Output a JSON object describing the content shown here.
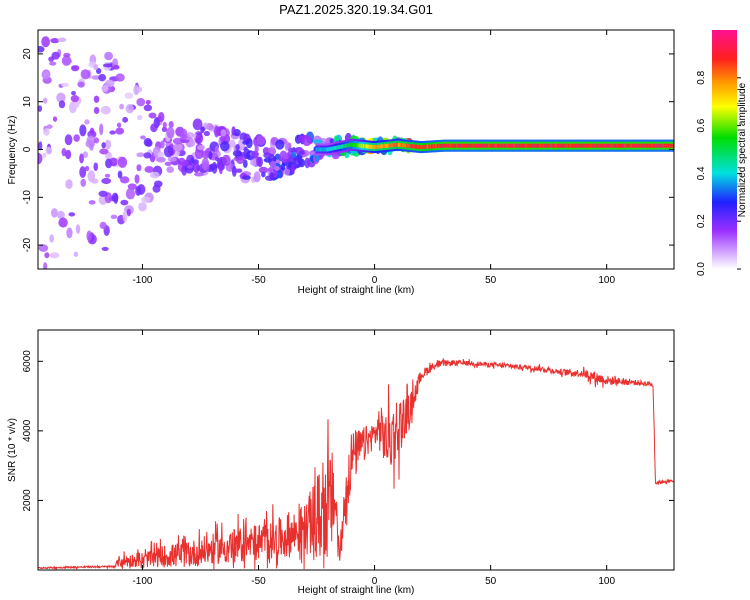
{
  "chart_data": [
    {
      "type": "heatmap",
      "title": "PAZ1.2025.320.19.34.G01",
      "xlabel": "Height of straight line (km)",
      "ylabel": "Frequency (Hz)",
      "xlim": [
        -145,
        129
      ],
      "ylim": [
        -25,
        25
      ],
      "x_ticks": [
        -100,
        -50,
        0,
        50,
        100
      ],
      "x_tick_labels": [
        "-100",
        "-50",
        "0",
        "50",
        "100"
      ],
      "y_ticks": [
        -20,
        -10,
        0,
        10,
        20
      ],
      "y_tick_labels": [
        "-20",
        "-10",
        "0",
        "10",
        "20"
      ],
      "colorbar": {
        "label": "Normalized spectral amplitude",
        "range": [
          0.0,
          1.0
        ],
        "ticks": [
          0.0,
          0.2,
          0.4,
          0.6,
          0.8
        ],
        "tick_labels": [
          "0.0",
          "0.2",
          "0.4",
          "0.6",
          "0.8"
        ],
        "colormap": "rainbow (white-violet-blue-cyan-green-yellow-red-magenta)"
      },
      "signal_track": {
        "description": "narrow line near 0-1 Hz, scattered at low heights, coherent above ~-20 km",
        "x": [
          -145,
          -110,
          -90,
          -70,
          -50,
          -40,
          -30,
          -20,
          -10,
          0,
          10,
          20,
          30,
          50,
          80,
          100,
          129
        ],
        "center_freq": [
          0,
          0,
          0,
          0,
          -1.5,
          -2,
          0,
          0,
          1,
          0.5,
          1,
          0.5,
          0.8,
          0.8,
          0.8,
          0.8,
          0.8
        ],
        "amplitude": [
          0.05,
          0.15,
          0.2,
          0.22,
          0.25,
          0.3,
          0.35,
          0.4,
          0.55,
          0.8,
          0.85,
          0.9,
          0.95,
          0.95,
          0.95,
          0.95,
          0.95
        ],
        "spread_hz": [
          25,
          20,
          6,
          5,
          5,
          4,
          3,
          2,
          1.5,
          1,
          1,
          0.8,
          0.8,
          0.8,
          0.8,
          0.8,
          0.8
        ]
      },
      "colors": {
        "violet": "#9b30ff",
        "blue": "#2020ff",
        "cyan": "#00e0e0",
        "green": "#00dd00",
        "yellow": "#ffff00",
        "red": "#ff2020",
        "magenta": "#ff1090"
      }
    },
    {
      "type": "line",
      "xlabel": "Height of straight line (km)",
      "ylabel": "SNR (10 * v/v)",
      "xlim": [
        -145,
        129
      ],
      "ylim": [
        0,
        6900
      ],
      "x_ticks": [
        -100,
        -50,
        0,
        50,
        100
      ],
      "x_tick_labels": [
        "-100",
        "-50",
        "0",
        "50",
        "100"
      ],
      "y_ticks": [
        2000,
        4000,
        6000
      ],
      "y_tick_labels": [
        "2000",
        "4000",
        "6000"
      ],
      "series": [
        {
          "name": "SNR",
          "color": "#e8302e",
          "x": [
            -145,
            -130,
            -112,
            -110,
            -100,
            -90,
            -80,
            -70,
            -60,
            -50,
            -40,
            -30,
            -25,
            -20,
            -17,
            -15,
            -12,
            -10,
            -5,
            0,
            2,
            5,
            8,
            10,
            12,
            15,
            18,
            20,
            25,
            30,
            40,
            50,
            60,
            70,
            80,
            90,
            95,
            100,
            110,
            119,
            120,
            121,
            125,
            129
          ],
          "baseline": [
            60,
            80,
            100,
            250,
            300,
            400,
            450,
            600,
            700,
            800,
            900,
            1200,
            1500,
            1800,
            2100,
            300,
            2500,
            3200,
            3600,
            3900,
            4100,
            3700,
            3900,
            4100,
            4300,
            4600,
            5200,
            5600,
            5850,
            5950,
            5950,
            5900,
            5850,
            5800,
            5700,
            5650,
            5550,
            5450,
            5400,
            5350,
            5300,
            2500,
            2550,
            2550
          ],
          "noise": [
            40,
            40,
            50,
            300,
            400,
            600,
            700,
            800,
            900,
            1000,
            1100,
            1300,
            2200,
            2800,
            2500,
            200,
            2000,
            1500,
            900,
            700,
            1200,
            1500,
            1800,
            1700,
            1300,
            800,
            500,
            300,
            200,
            150,
            120,
            120,
            120,
            130,
            150,
            200,
            300,
            250,
            150,
            120,
            100,
            80,
            80,
            80
          ]
        }
      ]
    }
  ]
}
